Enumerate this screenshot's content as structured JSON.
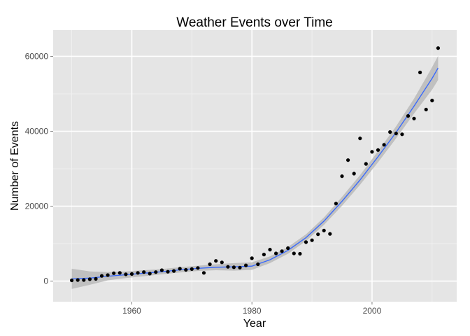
{
  "chart_data": {
    "type": "scatter",
    "title": "Weather Events over Time",
    "xlabel": "Year",
    "ylabel": "Number of Events",
    "xlim": [
      1946.9,
      2014.1
    ],
    "ylim": [
      -5500,
      67000
    ],
    "x_ticks": [
      1960,
      1980,
      2000
    ],
    "x_tick_labels": [
      "1960",
      "1980",
      "2000"
    ],
    "y_ticks": [
      0,
      20000,
      40000,
      60000
    ],
    "y_tick_labels": [
      "0",
      "20000",
      "40000",
      "60000"
    ],
    "grid": true,
    "legend": "none",
    "colors": {
      "panel": "#e5e5e5",
      "grid_major": "#ffffff",
      "grid_minor": "#f2f2f2",
      "points": "#000000",
      "smooth_line": "#3366ff",
      "confidence_band": "#b3b3b3"
    },
    "points": {
      "x": [
        1950,
        1951,
        1952,
        1953,
        1954,
        1955,
        1956,
        1957,
        1958,
        1959,
        1960,
        1961,
        1962,
        1963,
        1964,
        1965,
        1966,
        1967,
        1968,
        1969,
        1970,
        1971,
        1972,
        1973,
        1974,
        1975,
        1976,
        1977,
        1978,
        1979,
        1980,
        1981,
        1982,
        1983,
        1984,
        1985,
        1986,
        1987,
        1988,
        1989,
        1990,
        1991,
        1992,
        1993,
        1994,
        1995,
        1996,
        1997,
        1998,
        1999,
        2000,
        2001,
        2002,
        2003,
        2004,
        2005,
        2006,
        2007,
        2008,
        2009,
        2010,
        2011
      ],
      "y": [
        200,
        300,
        300,
        500,
        600,
        1400,
        1600,
        2100,
        2200,
        1800,
        1900,
        2200,
        2400,
        2000,
        2400,
        2900,
        2500,
        2700,
        3300,
        3000,
        3200,
        3500,
        2200,
        4500,
        5400,
        5000,
        3800,
        3700,
        3600,
        4200,
        6100,
        4500,
        7100,
        8400,
        7400,
        8000,
        8800,
        7400,
        7300,
        10400,
        10900,
        12500,
        13500,
        12600,
        20700,
        28000,
        32300,
        28700,
        38100,
        31300,
        34500,
        35000,
        36400,
        39800,
        39400,
        39200,
        44100,
        43400,
        55700,
        45800,
        48200,
        62200
      ]
    },
    "smooth": {
      "x": [
        1950,
        1953,
        1956,
        1959,
        1962,
        1965,
        1968,
        1971,
        1974,
        1977,
        1980,
        1983,
        1986,
        1989,
        1992,
        1995,
        1998,
        2001,
        2004,
        2007,
        2010,
        2011
      ],
      "y": [
        600,
        800,
        1300,
        1700,
        2100,
        2500,
        3000,
        3400,
        3700,
        3800,
        4000,
        5700,
        8200,
        11600,
        16000,
        21300,
        27000,
        33200,
        39700,
        46700,
        54100,
        56900
      ],
      "ci_upper": [
        3300,
        2600,
        2400,
        2600,
        2900,
        3200,
        3700,
        4100,
        4500,
        4800,
        5000,
        6600,
        9100,
        12500,
        17000,
        22500,
        28300,
        34700,
        41300,
        48700,
        57100,
        60100
      ],
      "ci_lower": [
        -2100,
        -1000,
        200,
        800,
        1300,
        1800,
        2300,
        2700,
        2900,
        2800,
        3000,
        4800,
        7300,
        10700,
        15000,
        20100,
        25700,
        31700,
        38100,
        44700,
        51100,
        53700
      ]
    }
  }
}
